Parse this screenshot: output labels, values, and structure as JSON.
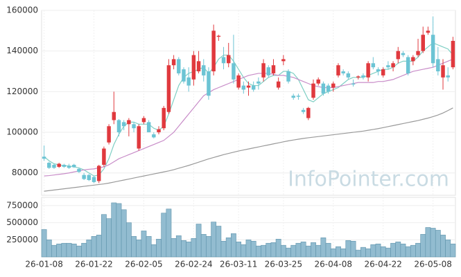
{
  "chart_data": {
    "type": "candlestick",
    "watermark": "InfoPointer.com",
    "categories": [
      "26-01-08",
      null,
      null,
      null,
      null,
      null,
      null,
      null,
      null,
      null,
      "26-01-22",
      null,
      null,
      null,
      null,
      null,
      null,
      null,
      null,
      null,
      "26-02-05",
      null,
      null,
      null,
      null,
      null,
      null,
      null,
      null,
      null,
      "26-02-24",
      null,
      null,
      null,
      null,
      null,
      null,
      null,
      null,
      "26-03-11",
      null,
      null,
      null,
      null,
      null,
      null,
      null,
      null,
      "26-03-25",
      null,
      null,
      null,
      null,
      null,
      null,
      null,
      null,
      null,
      "26-04-08",
      null,
      null,
      null,
      null,
      null,
      null,
      null,
      null,
      null,
      "26-04-22",
      null,
      null,
      null,
      null,
      null,
      null,
      null,
      null,
      null,
      "26-05-08",
      null,
      null,
      null,
      null
    ],
    "open": [
      88000,
      85000,
      84000,
      83000,
      84000,
      83500,
      84000,
      82000,
      79000,
      79000,
      78000,
      76000,
      84000,
      95000,
      106000,
      106000,
      105000,
      104000,
      104000,
      92000,
      105000,
      105000,
      99000,
      100000,
      102000,
      110000,
      133000,
      136000,
      131000,
      127000,
      126000,
      130000,
      133000,
      130000,
      130000,
      147000,
      137000,
      134000,
      134000,
      122000,
      123000,
      122000,
      123000,
      125000,
      127000,
      132000,
      129000,
      122000,
      135000,
      130000,
      118000,
      118000,
      111000,
      107000,
      117000,
      124000,
      124000,
      123000,
      122000,
      128000,
      130000,
      129000,
      124000,
      127000,
      128000,
      127000,
      134000,
      131000,
      128000,
      133000,
      132000,
      136000,
      139000,
      137000,
      135000,
      138000,
      140000,
      149000,
      148000,
      136000,
      127000,
      128000,
      132000
    ],
    "high": [
      93500,
      85500,
      84500,
      85000,
      84500,
      84500,
      84500,
      82500,
      80000,
      79500,
      78500,
      84000,
      93000,
      104000,
      120000,
      106500,
      106000,
      107000,
      105000,
      104000,
      108000,
      106000,
      100000,
      103000,
      113000,
      136000,
      138000,
      137000,
      132000,
      132000,
      140000,
      140000,
      136000,
      132000,
      153000,
      148000,
      142000,
      144000,
      148000,
      129000,
      125000,
      125000,
      125000,
      127000,
      136000,
      133000,
      136000,
      127000,
      138000,
      131000,
      119000,
      119000,
      112000,
      112500,
      126000,
      127000,
      125000,
      124000,
      125000,
      134000,
      131000,
      130000,
      126000,
      128000,
      129000,
      135000,
      137000,
      132000,
      132000,
      135000,
      135000,
      142000,
      140000,
      138000,
      138000,
      146000,
      152000,
      152000,
      157000,
      142000,
      136000,
      132000,
      147000
    ],
    "low": [
      86000,
      82000,
      82000,
      82500,
      82500,
      82000,
      82500,
      80000,
      76500,
      76000,
      75000,
      75000,
      83000,
      94000,
      104000,
      98000,
      101000,
      98000,
      100000,
      91000,
      104000,
      100000,
      97000,
      99000,
      101000,
      109000,
      131000,
      128000,
      124000,
      120000,
      123000,
      129000,
      125000,
      116000,
      128000,
      145000,
      131000,
      132000,
      124000,
      121000,
      119000,
      118000,
      120000,
      121000,
      125000,
      127000,
      128000,
      121000,
      133000,
      124000,
      116000,
      116000,
      109000,
      106000,
      116000,
      123000,
      118000,
      119000,
      120000,
      127000,
      128000,
      126000,
      122500,
      126000,
      126000,
      125000,
      131000,
      128000,
      127000,
      131000,
      130000,
      134000,
      137000,
      128000,
      133000,
      137000,
      139000,
      148000,
      132000,
      128000,
      121000,
      125000,
      131000
    ],
    "close": [
      87000,
      82500,
      82500,
      84500,
      83000,
      82500,
      82800,
      80500,
      77000,
      76500,
      75500,
      83500,
      92000,
      103000,
      110000,
      100000,
      103000,
      106000,
      102000,
      103000,
      107000,
      100000,
      97500,
      101500,
      112000,
      133000,
      136000,
      129000,
      125000,
      123000,
      138000,
      135000,
      128000,
      118000,
      150000,
      147500,
      134000,
      138000,
      126000,
      128000,
      121000,
      123000,
      121000,
      124000,
      134000,
      128000,
      133000,
      125000,
      136000,
      125000,
      117000,
      117500,
      110000,
      112000,
      124000,
      126000,
      119000,
      120000,
      124000,
      133000,
      129000,
      127000,
      123500,
      127500,
      127000,
      134000,
      132000,
      130000,
      131000,
      132000,
      134000,
      140000,
      138000,
      129000,
      137000,
      140000,
      148000,
      150000,
      134000,
      130000,
      133000,
      127000,
      145000
    ],
    "up_color": "#e0393e",
    "down_color": "#6cc4d4",
    "ylim": [
      69000,
      160000
    ],
    "yticks": [
      80000,
      100000,
      120000,
      140000,
      160000
    ],
    "grid": true,
    "moving_averages": [
      {
        "color": "#7fcfc4",
        "values": [
          88000,
          86000,
          84500,
          84000,
          83500,
          83500,
          83000,
          82500,
          81500,
          80000,
          78500,
          79000,
          82000,
          87000,
          94000,
          99000,
          103000,
          105000,
          105000,
          104000,
          104000,
          104000,
          102000,
          101000,
          103000,
          109000,
          116000,
          123000,
          127000,
          129000,
          130000,
          131000,
          132000,
          129000,
          132000,
          136000,
          138000,
          138000,
          135000,
          131000,
          127000,
          124000,
          123000,
          123000,
          125000,
          127000,
          128000,
          128000,
          130000,
          130000,
          129000,
          126000,
          121000,
          116000,
          115000,
          117000,
          119000,
          120000,
          121000,
          122000,
          124000,
          126000,
          127000,
          127000,
          127000,
          128000,
          129000,
          130000,
          131000,
          131000,
          132000,
          134000,
          135000,
          135000,
          135000,
          137000,
          140000,
          142000,
          144000,
          143000,
          142000,
          141000,
          138000
        ]
      },
      {
        "color": "#c88cc8",
        "values": [
          78500,
          78700,
          79000,
          79300,
          79600,
          80000,
          80500,
          81000,
          81500,
          81800,
          82000,
          82500,
          83000,
          84000,
          85500,
          87000,
          88000,
          89000,
          90000,
          91000,
          92000,
          93000,
          94000,
          95000,
          96000,
          98000,
          100000,
          103000,
          106000,
          109000,
          112000,
          115000,
          118000,
          119500,
          121000,
          122000,
          123000,
          124000,
          125000,
          126000,
          127000,
          128000,
          128500,
          129000,
          129000,
          129000,
          128500,
          128000,
          128000,
          127500,
          127000,
          126000,
          125000,
          124000,
          123000,
          122500,
          122000,
          122000,
          122000,
          122500,
          123000,
          123500,
          124000,
          124500,
          124500,
          124500,
          124500,
          125000,
          125000,
          125500,
          126000,
          127000,
          128000,
          129000,
          130000,
          130500,
          131000,
          131500,
          132000,
          133000,
          134000,
          135000,
          136000
        ]
      },
      {
        "color": "#999999",
        "values": [
          71000,
          71300,
          71600,
          71900,
          72200,
          72500,
          72800,
          73100,
          73400,
          73700,
          74000,
          74300,
          74600,
          75000,
          75500,
          76000,
          76500,
          77000,
          77500,
          78000,
          78500,
          79000,
          79500,
          80000,
          80500,
          81000,
          81600,
          82300,
          83000,
          83700,
          84500,
          85300,
          86100,
          86900,
          87600,
          88300,
          89000,
          89600,
          90200,
          90800,
          91300,
          91800,
          92300,
          92800,
          93300,
          93800,
          94300,
          94800,
          95300,
          95800,
          96200,
          96600,
          97000,
          97300,
          97600,
          97900,
          98200,
          98500,
          98800,
          99100,
          99400,
          99700,
          100000,
          100300,
          100600,
          101000,
          101400,
          101800,
          102300,
          102800,
          103300,
          103800,
          104300,
          104800,
          105300,
          105800,
          106400,
          107000,
          107700,
          108500,
          109500,
          110700,
          112000
        ]
      }
    ],
    "volume": {
      "color": "#92bcd0",
      "ylim": [
        0,
        870000
      ],
      "yticks": [
        250000,
        500000,
        750000
      ],
      "values": [
        400000,
        250000,
        170000,
        190000,
        200000,
        200000,
        190000,
        160000,
        200000,
        250000,
        300000,
        320000,
        620000,
        560000,
        790000,
        780000,
        690000,
        500000,
        300000,
        250000,
        380000,
        300000,
        180000,
        260000,
        640000,
        700000,
        270000,
        310000,
        240000,
        220000,
        270000,
        480000,
        330000,
        300000,
        510000,
        450000,
        230000,
        280000,
        340000,
        220000,
        180000,
        250000,
        230000,
        160000,
        170000,
        200000,
        210000,
        260000,
        170000,
        130000,
        170000,
        200000,
        220000,
        160000,
        210000,
        170000,
        280000,
        200000,
        120000,
        150000,
        120000,
        240000,
        230000,
        100000,
        140000,
        120000,
        180000,
        190000,
        150000,
        130000,
        200000,
        220000,
        190000,
        150000,
        170000,
        200000,
        330000,
        430000,
        420000,
        390000,
        320000,
        250000,
        190000
      ]
    }
  }
}
